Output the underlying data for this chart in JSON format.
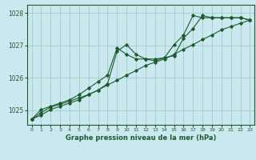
{
  "title": "Graphe pression niveau de la mer (hPa)",
  "bg_color": "#cbe8f0",
  "grid_color": "#9ecfbf",
  "line_color": "#1a5c28",
  "xlim": [
    -0.5,
    23.5
  ],
  "ylim": [
    1024.55,
    1028.25
  ],
  "yticks": [
    1025,
    1026,
    1027,
    1028
  ],
  "xticks": [
    0,
    1,
    2,
    3,
    4,
    5,
    6,
    7,
    8,
    9,
    10,
    11,
    12,
    13,
    14,
    15,
    16,
    17,
    18,
    19,
    20,
    21,
    22,
    23
  ],
  "series1": [
    1024.72,
    1024.92,
    1025.1,
    1025.18,
    1025.28,
    1025.38,
    1025.48,
    1025.62,
    1025.82,
    1026.82,
    1027.02,
    1026.72,
    1026.58,
    1026.58,
    1026.62,
    1026.68,
    1027.22,
    1027.52,
    1027.92,
    1027.85,
    1027.85,
    1027.85,
    1027.85,
    1027.78
  ],
  "series2": [
    1024.72,
    1025.02,
    1025.12,
    1025.22,
    1025.32,
    1025.48,
    1025.68,
    1025.88,
    1026.08,
    1026.92,
    1026.72,
    1026.58,
    1026.58,
    1026.52,
    1026.62,
    1027.02,
    1027.32,
    1027.92,
    1027.85,
    1027.85,
    1027.85,
    1027.85,
    1027.85,
    1027.78
  ],
  "series3": [
    1024.72,
    1024.85,
    1025.02,
    1025.12,
    1025.22,
    1025.32,
    1025.48,
    1025.62,
    1025.78,
    1025.92,
    1026.08,
    1026.22,
    1026.38,
    1026.48,
    1026.58,
    1026.72,
    1026.88,
    1027.02,
    1027.18,
    1027.32,
    1027.48,
    1027.58,
    1027.68,
    1027.78
  ]
}
